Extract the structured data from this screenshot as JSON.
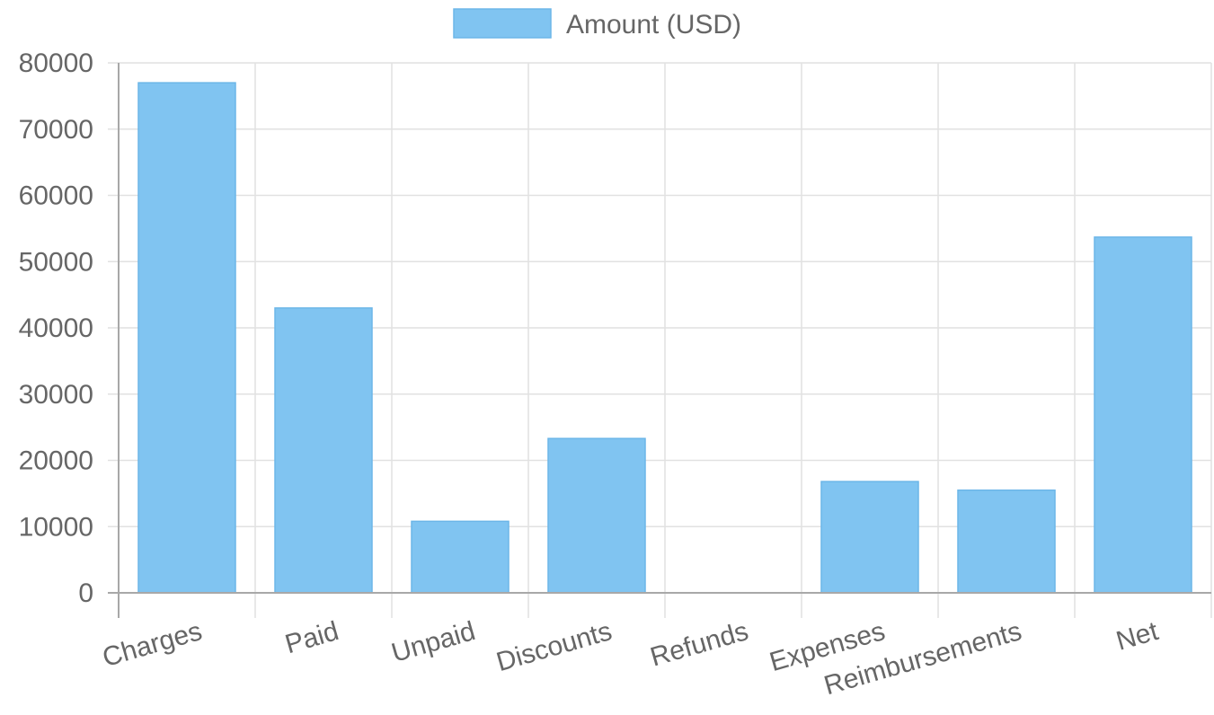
{
  "chart_data": {
    "type": "bar",
    "categories": [
      "Charges",
      "Paid",
      "Unpaid",
      "Discounts",
      "Refunds",
      "Expenses",
      "Reimbursements",
      "Net"
    ],
    "series": [
      {
        "name": "Amount (USD)",
        "values": [
          77000,
          43000,
          10800,
          23300,
          0,
          16800,
          15500,
          53700
        ]
      }
    ],
    "ylim": [
      0,
      80000
    ],
    "yticks": [
      0,
      10000,
      20000,
      30000,
      40000,
      50000,
      60000,
      70000,
      80000
    ],
    "grid": true,
    "legend": "top-center",
    "colors": {
      "bar_fill": "#80c4f1",
      "bar_stroke": "#6cb6e8",
      "grid": "#e1e1e1",
      "axis": "#a8a8a8",
      "text": "#666666"
    }
  }
}
